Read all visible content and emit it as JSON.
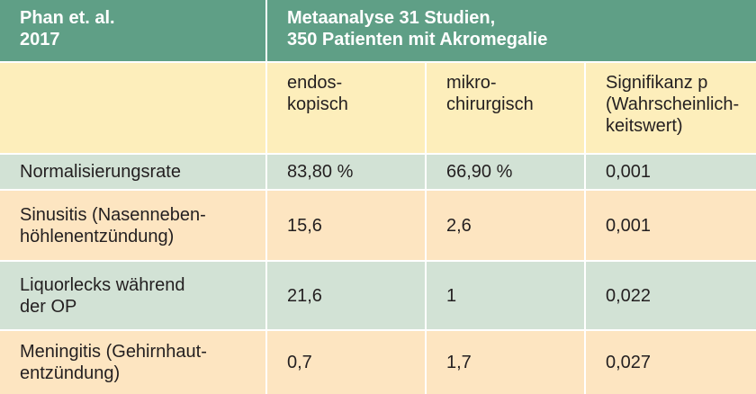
{
  "header": {
    "left": "Phan et. al.\n2017",
    "right": "Metaanalyse 31 Studien,\n350 Patienten mit Akromegalie"
  },
  "columns": [
    "endos-\nkopisch",
    "mikro-\nchirurgisch",
    "Signifikanz p\n(Wahrscheinlich-\nkeitswert)"
  ],
  "rows": [
    {
      "label": "Normalisierungsrate",
      "values": [
        "83,80 %",
        "66,90 %",
        "0,001"
      ]
    },
    {
      "label": "Sinusitis (Nasenneben-\nhöhlenentzündung)",
      "values": [
        "15,6",
        "2,6",
        "0,001"
      ]
    },
    {
      "label": "Liquorlecks während\nder OP",
      "values": [
        "21,6",
        "1",
        "0,022"
      ]
    },
    {
      "label": "Meningitis (Gehirnhaut-\nentzündung)",
      "values": [
        "0,7",
        "1,7",
        "0,027"
      ]
    }
  ]
}
